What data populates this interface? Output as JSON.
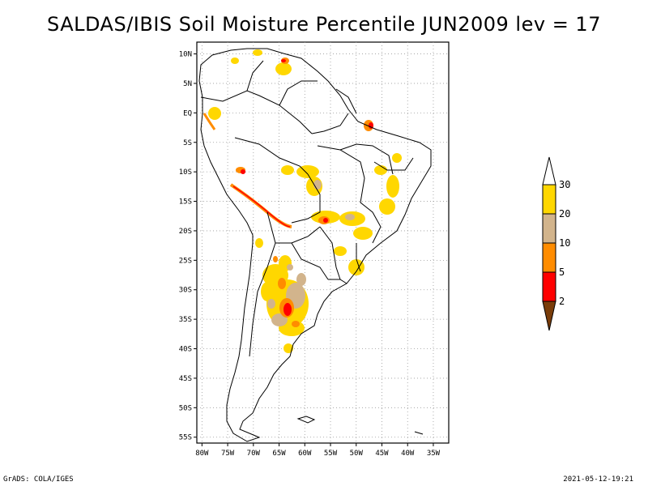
{
  "title": "SALDAS/IBIS Soil Moisture Percentile JUN2009 lev = 17",
  "footer": {
    "left": "GrADS: COLA/IGES",
    "right": "2021-05-12-19:21"
  },
  "map": {
    "lat_range": [
      -56,
      12
    ],
    "lon_range": [
      -81,
      -32
    ],
    "lat_ticks": [
      {
        "value": 10,
        "label": "10N"
      },
      {
        "value": 5,
        "label": "5N"
      },
      {
        "value": 0,
        "label": "EQ"
      },
      {
        "value": -5,
        "label": "5S"
      },
      {
        "value": -10,
        "label": "10S"
      },
      {
        "value": -15,
        "label": "15S"
      },
      {
        "value": -20,
        "label": "20S"
      },
      {
        "value": -25,
        "label": "25S"
      },
      {
        "value": -30,
        "label": "30S"
      },
      {
        "value": -35,
        "label": "35S"
      },
      {
        "value": -40,
        "label": "40S"
      },
      {
        "value": -45,
        "label": "45S"
      },
      {
        "value": -50,
        "label": "50S"
      },
      {
        "value": -55,
        "label": "55S"
      }
    ],
    "lon_ticks": [
      {
        "value": -80,
        "label": "80W"
      },
      {
        "value": -75,
        "label": "75W"
      },
      {
        "value": -70,
        "label": "70W"
      },
      {
        "value": -65,
        "label": "65W"
      },
      {
        "value": -60,
        "label": "60W"
      },
      {
        "value": -55,
        "label": "55W"
      },
      {
        "value": -50,
        "label": "50W"
      },
      {
        "value": -45,
        "label": "45W"
      },
      {
        "value": -40,
        "label": "40W"
      },
      {
        "value": -35,
        "label": "35W"
      }
    ]
  },
  "colorbar": {
    "colors": [
      "#7a3d0a",
      "#ff0000",
      "#ff8c00",
      "#d2b48c",
      "#ffd700",
      "#ffffff"
    ],
    "labels": [
      "2",
      "5",
      "10",
      "20",
      "30"
    ]
  },
  "colors": {
    "gold": "#ffd700",
    "tan": "#d2b48c",
    "orange": "#ff8c00",
    "red": "#ff0000",
    "brown": "#7a3d0a"
  }
}
